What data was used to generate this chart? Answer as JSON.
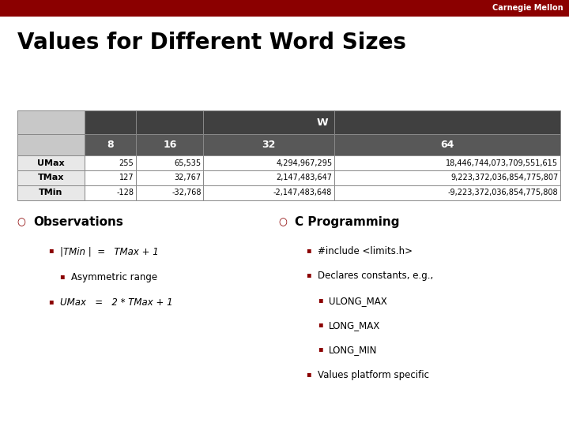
{
  "title": "Values for Different Word Sizes",
  "header_bar_color": "#8B0000",
  "header_text": "Carnegie Mellon",
  "table": {
    "w_header": "W",
    "row_labels": [
      "UMax",
      "TMax",
      "TMin"
    ],
    "data": [
      [
        "255",
        "65,535",
        "4,294,967,295",
        "18,446,744,073,709,551,615"
      ],
      [
        "127",
        "32,767",
        "2,147,483,647",
        "9,223,372,036,854,775,807"
      ],
      [
        "-128",
        "-32,768",
        "-2,147,483,648",
        "-9,223,372,036,854,775,808"
      ]
    ]
  },
  "bullet_color": "#8B0000",
  "observations": {
    "title": "Observations",
    "items": [
      {
        "text": "|TMin |  =   TMax + 1",
        "italic": true,
        "level": 1
      },
      {
        "text": "Asymmetric range",
        "italic": false,
        "level": 2
      },
      {
        "text": "UMax   =   2 * TMax + 1",
        "italic": true,
        "level": 1
      }
    ]
  },
  "cprogramming": {
    "title": "C Programming",
    "items": [
      {
        "text": "#include <limits.h>",
        "italic": false,
        "level": 1
      },
      {
        "text": "Declares constants, e.g.,",
        "italic": false,
        "level": 1
      },
      {
        "text": "ULONG_MAX",
        "italic": false,
        "level": 2
      },
      {
        "text": "LONG_MAX",
        "italic": false,
        "level": 2
      },
      {
        "text": "LONG_MIN",
        "italic": false,
        "level": 2
      },
      {
        "text": "Values platform specific",
        "italic": false,
        "level": 1
      }
    ]
  }
}
